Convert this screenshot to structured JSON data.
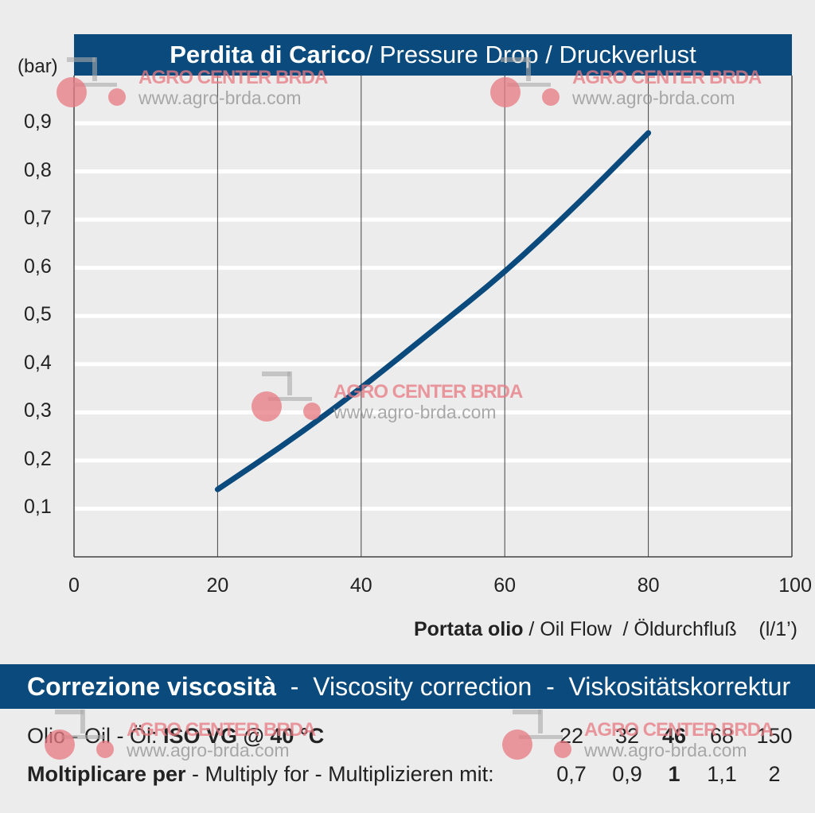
{
  "chart_data": {
    "type": "line",
    "title": "Perdita di Carico",
    "title_suffix": " / Pressure Drop / Druckverlust",
    "y_unit": "(bar)",
    "xlabel_bold": "Portata olio",
    "xlabel_rest": " / Oil Flow  / Öldurchfluß    (l/1’)",
    "xlim": [
      0,
      100
    ],
    "ylim": [
      0,
      1.0
    ],
    "x_ticks": [
      "0",
      "20",
      "40",
      "60",
      "80",
      "100"
    ],
    "y_ticks": [
      "0,1",
      "0,2",
      "0,3",
      "0,4",
      "0,5",
      "0,6",
      "0,7",
      "0,8",
      "0,9"
    ],
    "grid": true,
    "series": [
      {
        "x": [
          20,
          30,
          40,
          50,
          60,
          70,
          80
        ],
        "y": [
          0.14,
          0.24,
          0.35,
          0.47,
          0.59,
          0.73,
          0.88
        ],
        "color": "#0a4a7c"
      }
    ]
  },
  "viscosity": {
    "title_bold": "Correzione viscosità",
    "title_rest": "  -  Viscosity correction  -  Viskositätskorrektur",
    "oil_label": "Olio - Oil - Öl: ",
    "oil_label_bold": "ISO VG @ 40 °C",
    "multiply_bold": "Moltiplicare per",
    "multiply_rest": " - Multiply for - Multiplizieren mit:",
    "grades": [
      "22",
      "32",
      "46",
      "68",
      "150"
    ],
    "factors": [
      "0,7",
      "0,9",
      "1",
      "1,1",
      "2"
    ],
    "highlight_index": 2
  },
  "watermark": {
    "brand": "AGRO CENTER BRDA",
    "site": "www.agro-brda.com"
  },
  "colors": {
    "accent": "#0a4a7c",
    "background": "#ececec",
    "grid": "#ffffff"
  }
}
